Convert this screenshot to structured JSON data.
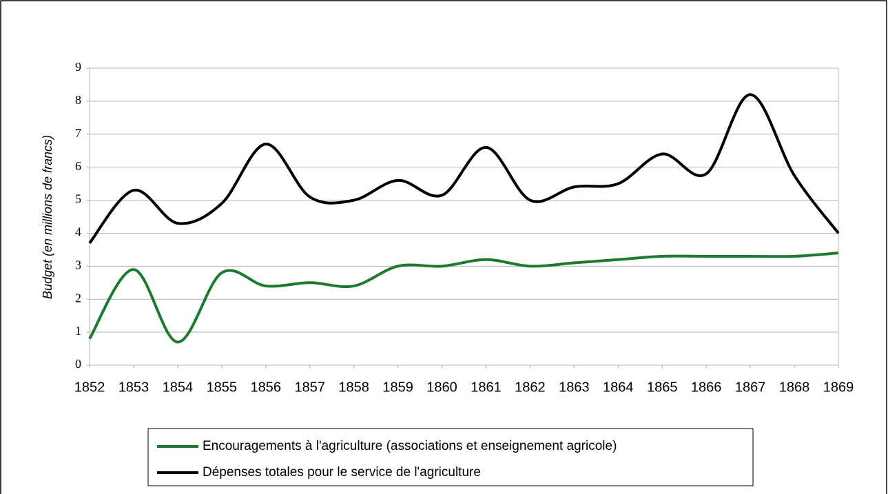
{
  "chart_data": {
    "type": "line",
    "y_label": "Budget (en millions de francs)",
    "categories": [
      "1852",
      "1853",
      "1854",
      "1855",
      "1856",
      "1857",
      "1858",
      "1859",
      "1860",
      "1861",
      "1862",
      "1863",
      "1864",
      "1865",
      "1866",
      "1867",
      "1868",
      "1869"
    ],
    "series": [
      {
        "name": "Encouragements à l'agriculture (associations et enseignement agricole)",
        "color": "#1a7a2e",
        "values": [
          0.8,
          2.9,
          0.7,
          2.8,
          2.4,
          2.5,
          2.4,
          3.0,
          3.0,
          3.2,
          3.0,
          3.1,
          3.2,
          3.3,
          3.3,
          3.3,
          3.3,
          3.4
        ]
      },
      {
        "name": "Dépenses totales pour le service de l'agriculture",
        "color": "#000000",
        "values": [
          3.7,
          5.3,
          4.3,
          4.9,
          6.7,
          5.1,
          5.0,
          5.6,
          5.15,
          6.6,
          5.0,
          5.4,
          5.5,
          6.4,
          5.8,
          8.2,
          5.75,
          4.0
        ]
      }
    ],
    "ylim": [
      0,
      9
    ],
    "yticks": [
      0,
      1,
      2,
      3,
      4,
      5,
      6,
      7,
      8,
      9
    ],
    "grid": true,
    "smooth": true
  }
}
